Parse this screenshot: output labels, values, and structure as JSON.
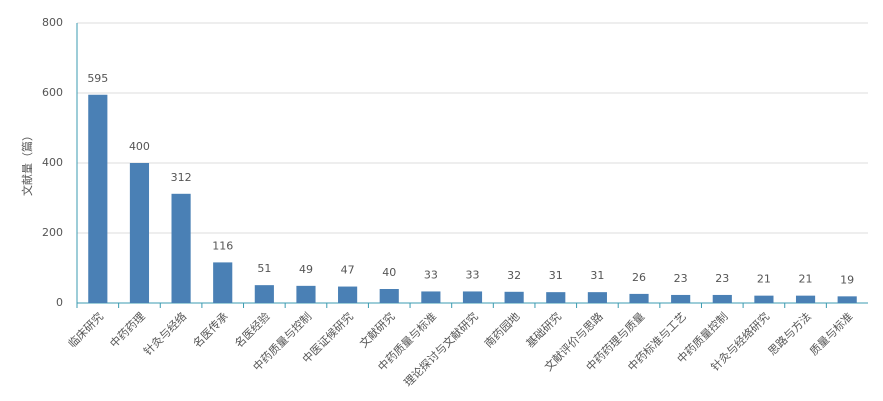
{
  "chart_data": {
    "type": "bar",
    "y_label": "文献量（篇）",
    "categories": [
      "临床研究",
      "中药药理",
      "针灸与经络",
      "名医传承",
      "名医经验",
      "中药质量与控制",
      "中医证候研究",
      "文献研究",
      "中药质量与标准",
      "理论探讨与文献研究",
      "南药园地",
      "基础研究",
      "文献评价与思路",
      "中药药理与质量",
      "中药标准与工艺",
      "中药质量控制",
      "针灸与经络研究",
      "思路与方法",
      "质量与标准"
    ],
    "values": [
      595,
      400,
      312,
      116,
      51,
      49,
      47,
      40,
      33,
      33,
      32,
      31,
      31,
      26,
      23,
      23,
      21,
      21,
      19
    ],
    "color": "#4a80b5",
    "ylim": [
      0,
      800
    ],
    "yticks": [
      0,
      200,
      400,
      600,
      800
    ],
    "grid": true
  }
}
